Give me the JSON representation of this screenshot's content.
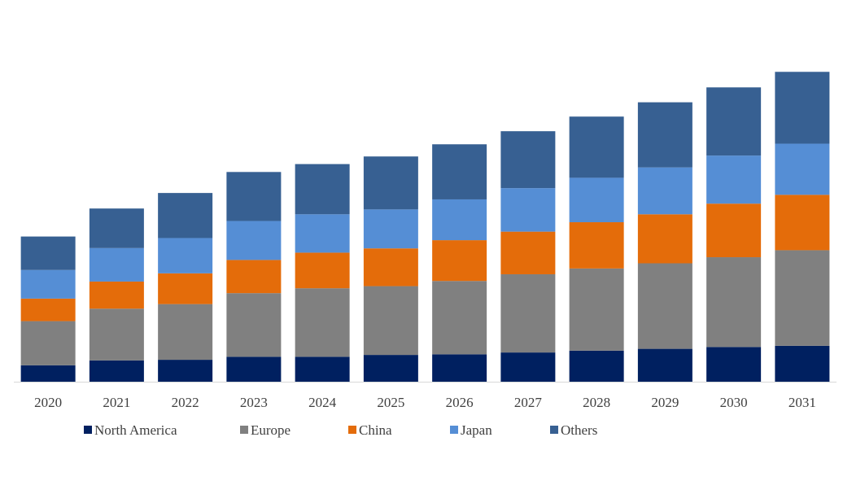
{
  "chart_data": {
    "type": "bar",
    "stacked": true,
    "title": "",
    "xlabel": "",
    "ylabel": "",
    "ylim": [
      0,
      100
    ],
    "grid": false,
    "legend_position": "bottom",
    "categories": [
      "2020",
      "2021",
      "2022",
      "2023",
      "2024",
      "2025",
      "2026",
      "2027",
      "2028",
      "2029",
      "2030",
      "2031"
    ],
    "series": [
      {
        "name": "North America",
        "color": "#002060",
        "values": [
          5.4,
          7.0,
          7.2,
          8.2,
          8.2,
          8.8,
          9.0,
          9.6,
          10.2,
          10.8,
          11.4,
          11.8
        ]
      },
      {
        "name": "Europe",
        "color": "#808080",
        "values": [
          14.5,
          17.0,
          18.3,
          20.9,
          22.5,
          22.6,
          24.1,
          25.7,
          27.0,
          28.1,
          29.5,
          31.4
        ]
      },
      {
        "name": "China",
        "color": "#E46C0A",
        "values": [
          7.4,
          8.9,
          10.1,
          10.9,
          11.7,
          12.4,
          13.4,
          14.0,
          15.2,
          16.1,
          17.6,
          18.2
        ]
      },
      {
        "name": "Japan",
        "color": "#558ED5",
        "values": [
          9.4,
          11.0,
          11.6,
          12.8,
          12.6,
          12.8,
          13.4,
          14.3,
          14.6,
          15.4,
          15.8,
          16.8
        ]
      },
      {
        "name": "Others",
        "color": "#376092",
        "values": [
          11.0,
          13.0,
          14.8,
          16.1,
          16.5,
          17.4,
          18.1,
          18.7,
          20.1,
          21.4,
          22.4,
          23.6
        ]
      }
    ]
  }
}
